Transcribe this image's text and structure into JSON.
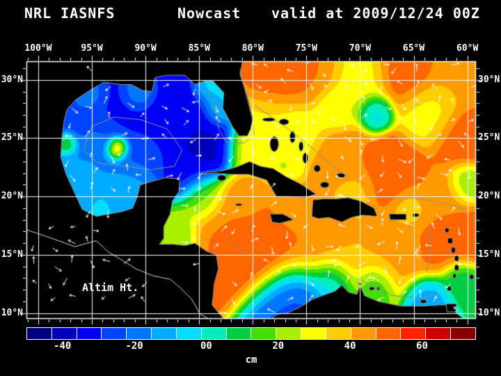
{
  "title": {
    "left": "NRL IASNFS",
    "center": "Nowcast",
    "right": "valid at 2009/12/24 00Z"
  },
  "map": {
    "overlay_label": "Altim Ht.",
    "extent": {
      "lon_min": -101.1,
      "lon_max": -59.2,
      "lat_min": 9.5,
      "lat_max": 31.6
    },
    "lon_ticks": [
      {
        "lon": -100,
        "label": "100°W"
      },
      {
        "lon": -95,
        "label": "95°W"
      },
      {
        "lon": -90,
        "label": "90°W"
      },
      {
        "lon": -85,
        "label": "85°W"
      },
      {
        "lon": -80,
        "label": "80°W"
      },
      {
        "lon": -75,
        "label": "75°W"
      },
      {
        "lon": -70,
        "label": "70°W"
      },
      {
        "lon": -65,
        "label": "65°W"
      },
      {
        "lon": -60,
        "label": "60°W"
      }
    ],
    "lat_ticks": [
      {
        "lat": 30,
        "label": "30°N"
      },
      {
        "lat": 25,
        "label": "25°N"
      },
      {
        "lat": 20,
        "label": "20°N"
      },
      {
        "lat": 15,
        "label": "15°N"
      },
      {
        "lat": 10,
        "label": "10°N"
      }
    ],
    "grid_color": "#ffffff",
    "coast_color": "#9a9a9a",
    "land_color": "#000000",
    "vector_color": "#ffffff"
  },
  "colorbar": {
    "unit": "cm",
    "min": -50,
    "max": 75,
    "colors": [
      "#000080",
      "#0000bb",
      "#0000f5",
      "#0044ff",
      "#0077ff",
      "#00aaff",
      "#00ddff",
      "#00eebb",
      "#00cc44",
      "#44dd00",
      "#aaee00",
      "#ffff00",
      "#ffcc00",
      "#ff9900",
      "#ff6600",
      "#ff2200",
      "#cc0000",
      "#880000"
    ],
    "ticks": [
      {
        "value": -40,
        "label": "-40"
      },
      {
        "value": -20,
        "label": "-20"
      },
      {
        "value": 0,
        "label": "00"
      },
      {
        "value": 20,
        "label": "20"
      },
      {
        "value": 40,
        "label": "40"
      },
      {
        "value": 60,
        "label": "60"
      }
    ]
  },
  "chart_data": {
    "type": "heatmap",
    "title": "NRL IASNFS Nowcast valid at 2009/12/24 00Z",
    "variable": "Altim Ht.",
    "units": "cm",
    "lon_range": [
      -101.1,
      -59.2
    ],
    "lat_range": [
      9.5,
      31.6
    ],
    "value_range": [
      -50,
      75
    ],
    "colorbar_ticks": [
      -40,
      -20,
      0,
      20,
      40,
      60
    ],
    "control_points": [
      [
        -97.0,
        27.5,
        -28,
        2.0
      ],
      [
        -95.5,
        28.7,
        -3,
        0.8
      ],
      [
        -93.5,
        27.2,
        -30,
        1.8
      ],
      [
        -90.5,
        28.9,
        -3,
        0.8
      ],
      [
        -89.5,
        27.5,
        -33,
        1.8
      ],
      [
        -86.0,
        26.5,
        -35,
        1.8
      ],
      [
        -84.0,
        29.3,
        -3,
        0.8
      ],
      [
        -83.2,
        27.5,
        -3,
        0.8
      ],
      [
        -84.6,
        24.2,
        -38,
        1.5
      ],
      [
        -86.2,
        22.0,
        -33,
        1.1
      ],
      [
        -90.5,
        24.0,
        -26,
        1.5
      ],
      [
        -94.6,
        24.6,
        -14,
        1.1
      ],
      [
        -92.6,
        24.2,
        75,
        0.55
      ],
      [
        -97.3,
        24.6,
        25,
        0.55
      ],
      [
        -96.6,
        21.6,
        -12,
        1.2
      ],
      [
        -91.5,
        21.2,
        -12,
        1.2
      ],
      [
        -94.0,
        19.5,
        -8,
        0.9
      ],
      [
        -84.6,
        19.8,
        18,
        1.1
      ],
      [
        -87.2,
        16.6,
        20,
        1.1
      ],
      [
        -80.2,
        24.0,
        32,
        1.1
      ],
      [
        -78.8,
        26.3,
        32,
        1.3
      ],
      [
        -77.6,
        23.1,
        26,
        1.0
      ],
      [
        -82.2,
        17.2,
        48,
        1.8
      ],
      [
        -78.6,
        15.6,
        56,
        1.8
      ],
      [
        -75.0,
        16.2,
        46,
        1.8
      ],
      [
        -71.0,
        15.0,
        40,
        1.8
      ],
      [
        -66.6,
        15.2,
        42,
        1.6
      ],
      [
        -63.2,
        15.6,
        50,
        1.4
      ],
      [
        -80.6,
        19.6,
        44,
        1.3
      ],
      [
        -76.2,
        18.9,
        40,
        1.1
      ],
      [
        -76.2,
        11.6,
        -24,
        1.6
      ],
      [
        -72.6,
        12.6,
        -8,
        1.1
      ],
      [
        -68.8,
        12.4,
        12,
        1.0
      ],
      [
        -63.6,
        11.4,
        -12,
        1.0
      ],
      [
        -60.8,
        12.6,
        8,
        0.9
      ],
      [
        -78.2,
        30.0,
        50,
        1.3
      ],
      [
        -74.6,
        30.6,
        48,
        1.5
      ],
      [
        -70.2,
        30.0,
        30,
        1.5
      ],
      [
        -65.6,
        30.6,
        52,
        1.5
      ],
      [
        -61.0,
        30.2,
        42,
        1.4
      ],
      [
        -72.2,
        27.6,
        25,
        1.1
      ],
      [
        -68.6,
        27.2,
        -5,
        0.8
      ],
      [
        -63.6,
        27.2,
        30,
        1.4
      ],
      [
        -60.4,
        25.0,
        52,
        1.4
      ],
      [
        -75.6,
        25.6,
        30,
        1.2
      ],
      [
        -71.6,
        23.6,
        46,
        1.4
      ],
      [
        -67.0,
        22.2,
        52,
        1.5
      ],
      [
        -62.6,
        20.2,
        46,
        1.4
      ],
      [
        -60.2,
        16.6,
        50,
        1.2
      ],
      [
        -65.2,
        19.0,
        36,
        0.9
      ],
      [
        -70.6,
        20.6,
        38,
        1.0
      ],
      [
        -60.2,
        21.2,
        18,
        0.9
      ]
    ]
  },
  "geo": {
    "land": [
      [
        [
          -101.3,
          31.8
        ],
        [
          -80.9,
          31.8
        ],
        [
          -81.2,
          30.5
        ],
        [
          -80.5,
          28.6
        ],
        [
          -80.0,
          26.7
        ],
        [
          -80.2,
          25.8
        ],
        [
          -80.5,
          25.2
        ],
        [
          -81.3,
          25.2
        ],
        [
          -81.9,
          26.0
        ],
        [
          -82.8,
          27.6
        ],
        [
          -82.7,
          28.9
        ],
        [
          -83.7,
          29.9
        ],
        [
          -84.5,
          29.9
        ],
        [
          -85.4,
          29.6
        ],
        [
          -86.3,
          30.4
        ],
        [
          -88.0,
          30.4
        ],
        [
          -89.1,
          30.2
        ],
        [
          -89.4,
          29.0
        ],
        [
          -90.3,
          29.1
        ],
        [
          -91.3,
          29.6
        ],
        [
          -92.3,
          29.6
        ],
        [
          -93.9,
          29.8
        ],
        [
          -95.2,
          29.1
        ],
        [
          -96.5,
          28.3
        ],
        [
          -97.3,
          27.5
        ],
        [
          -97.6,
          26.4
        ],
        [
          -97.8,
          24.9
        ],
        [
          -97.9,
          23.4
        ],
        [
          -97.4,
          21.9
        ],
        [
          -96.5,
          20.1
        ],
        [
          -95.9,
          18.9
        ],
        [
          -94.6,
          18.3
        ],
        [
          -93.4,
          18.5
        ],
        [
          -92.2,
          18.7
        ],
        [
          -91.2,
          19.0
        ],
        [
          -90.8,
          19.9
        ],
        [
          -90.5,
          21.0
        ],
        [
          -89.4,
          21.3
        ],
        [
          -88.2,
          21.6
        ],
        [
          -86.8,
          21.5
        ],
        [
          -86.9,
          20.4
        ],
        [
          -87.5,
          19.6
        ],
        [
          -87.7,
          18.5
        ],
        [
          -88.3,
          17.4
        ],
        [
          -88.3,
          16.4
        ],
        [
          -88.7,
          15.9
        ],
        [
          -87.4,
          15.9
        ],
        [
          -86.3,
          15.8
        ],
        [
          -85.4,
          16.0
        ],
        [
          -84.3,
          15.3
        ],
        [
          -83.4,
          15.0
        ],
        [
          -83.2,
          13.8
        ],
        [
          -83.6,
          12.5
        ],
        [
          -83.7,
          11.4
        ],
        [
          -83.8,
          10.7
        ],
        [
          -82.8,
          9.6
        ],
        [
          -82.3,
          9.3
        ],
        [
          -101.3,
          9.3
        ]
      ],
      [
        [
          -84.9,
          21.9
        ],
        [
          -84.1,
          22.1
        ],
        [
          -82.9,
          22.2
        ],
        [
          -81.6,
          22.5
        ],
        [
          -80.3,
          23.0
        ],
        [
          -79.3,
          22.6
        ],
        [
          -78.1,
          22.4
        ],
        [
          -76.9,
          21.7
        ],
        [
          -75.6,
          21.1
        ],
        [
          -74.1,
          20.2
        ],
        [
          -75.2,
          19.9
        ],
        [
          -76.6,
          20.0
        ],
        [
          -77.8,
          20.0
        ],
        [
          -78.7,
          21.4
        ],
        [
          -80.4,
          21.9
        ],
        [
          -82.0,
          21.9
        ],
        [
          -83.6,
          22.0
        ]
      ],
      [
        [
          -74.5,
          18.3
        ],
        [
          -74.4,
          19.7
        ],
        [
          -73.4,
          19.8
        ],
        [
          -72.3,
          19.8
        ],
        [
          -71.1,
          19.9
        ],
        [
          -69.9,
          19.6
        ],
        [
          -68.7,
          19.0
        ],
        [
          -68.4,
          18.3
        ],
        [
          -69.8,
          18.4
        ],
        [
          -70.8,
          18.2
        ],
        [
          -71.7,
          17.8
        ],
        [
          -72.9,
          18.2
        ],
        [
          -73.9,
          18.1
        ]
      ],
      [
        [
          -78.4,
          18.5
        ],
        [
          -77.2,
          18.5
        ],
        [
          -76.2,
          18.0
        ],
        [
          -77.5,
          17.7
        ],
        [
          -78.2,
          17.8
        ]
      ],
      [
        [
          -67.3,
          18.5
        ],
        [
          -65.7,
          18.5
        ],
        [
          -65.7,
          18.0
        ],
        [
          -67.2,
          18.0
        ]
      ],
      [
        [
          -78.6,
          9.3
        ],
        [
          -77.7,
          9.9
        ],
        [
          -76.8,
          10.0
        ],
        [
          -75.6,
          10.5
        ],
        [
          -74.6,
          11.1
        ],
        [
          -74.1,
          11.3
        ],
        [
          -72.3,
          11.9
        ],
        [
          -71.7,
          12.4
        ],
        [
          -71.1,
          11.8
        ],
        [
          -70.3,
          11.6
        ],
        [
          -70.0,
          12.4
        ],
        [
          -69.6,
          11.5
        ],
        [
          -68.3,
          11.0
        ],
        [
          -66.2,
          10.6
        ],
        [
          -64.1,
          10.6
        ],
        [
          -62.6,
          10.7
        ],
        [
          -62.0,
          10.7
        ],
        [
          -61.0,
          10.0
        ],
        [
          -60.1,
          9.3
        ]
      ],
      [
        [
          -62.0,
          10.8
        ],
        [
          -61.0,
          10.8
        ],
        [
          -61.1,
          10.1
        ],
        [
          -61.9,
          10.1
        ]
      ]
    ],
    "islands": [
      [
        -78.5,
        26.6,
        1.2,
        0.3
      ],
      [
        -77.1,
        26.4,
        0.9,
        0.5
      ],
      [
        -78.0,
        24.5,
        0.8,
        1.3
      ],
      [
        -76.3,
        25.1,
        0.5,
        1.0
      ],
      [
        -75.5,
        24.3,
        0.4,
        0.8
      ],
      [
        -75.1,
        23.3,
        0.5,
        0.9
      ],
      [
        -74.0,
        22.4,
        0.6,
        0.6
      ],
      [
        -73.3,
        21.0,
        0.8,
        0.5
      ],
      [
        -71.8,
        21.8,
        0.8,
        0.4
      ],
      [
        -81.3,
        19.3,
        0.6,
        0.2
      ],
      [
        -82.9,
        21.6,
        0.8,
        0.5
      ],
      [
        -64.8,
        18.4,
        0.6,
        0.3
      ],
      [
        -61.9,
        17.1,
        0.4,
        0.4
      ],
      [
        -61.6,
        16.2,
        0.5,
        0.5
      ],
      [
        -61.3,
        15.4,
        0.4,
        0.5
      ],
      [
        -61.0,
        14.7,
        0.4,
        0.5
      ],
      [
        -61.0,
        13.9,
        0.4,
        0.5
      ],
      [
        -61.2,
        13.2,
        0.3,
        0.4
      ],
      [
        -61.7,
        12.1,
        0.4,
        0.4
      ],
      [
        -59.6,
        13.1,
        0.4,
        0.4
      ],
      [
        -68.9,
        12.1,
        0.5,
        0.3
      ],
      [
        -70.0,
        12.5,
        0.3,
        0.2
      ],
      [
        -68.3,
        12.1,
        0.3,
        0.3
      ],
      [
        -64.1,
        11.0,
        0.6,
        0.3
      ]
    ],
    "contours": [
      [
        [
          -95.8,
          24.0
        ],
        [
          -95.0,
          26.0
        ],
        [
          -93.0,
          26.8
        ],
        [
          -90.5,
          26.6
        ],
        [
          -88.0,
          25.8
        ],
        [
          -86.6,
          24.0
        ],
        [
          -87.3,
          22.6
        ],
        [
          -89.5,
          22.3
        ],
        [
          -92.0,
          22.6
        ],
        [
          -94.5,
          22.9
        ],
        [
          -95.8,
          24.0
        ]
      ],
      [
        [
          -79.8,
          27.8
        ],
        [
          -77.0,
          26.0
        ],
        [
          -74.5,
          24.2
        ],
        [
          -72.5,
          22.6
        ],
        [
          -71.0,
          21.6
        ]
      ],
      [
        [
          -81.2,
          30.9
        ],
        [
          -80.7,
          29.0
        ],
        [
          -80.0,
          26.5
        ],
        [
          -79.9,
          25.3
        ],
        [
          -80.8,
          24.6
        ],
        [
          -82.4,
          24.6
        ],
        [
          -83.2,
          25.8
        ],
        [
          -83.5,
          27.8
        ],
        [
          -84.2,
          29.2
        ]
      ],
      [
        [
          -68.5,
          19.9
        ],
        [
          -65.0,
          19.9
        ],
        [
          -62.0,
          19.4
        ],
        [
          -60.0,
          18.8
        ]
      ],
      [
        [
          -63.6,
          17.5
        ],
        [
          -63.4,
          15.5
        ],
        [
          -63.8,
          13.5
        ]
      ],
      [
        [
          -70.0,
          12.9
        ],
        [
          -67.0,
          11.5
        ],
        [
          -64.5,
          11.3
        ],
        [
          -62.5,
          11.6
        ]
      ],
      [
        [
          -82.5,
          16.5
        ],
        [
          -80.5,
          15.0
        ],
        [
          -79.0,
          13.5
        ]
      ]
    ],
    "pacific_coast": [
      [
        -101.3,
        17.2
      ],
      [
        -99.0,
        16.5
      ],
      [
        -96.6,
        15.7
      ],
      [
        -94.6,
        16.2
      ],
      [
        -93.4,
        15.2
      ],
      [
        -92.3,
        14.6
      ],
      [
        -90.9,
        13.8
      ],
      [
        -89.3,
        13.2
      ],
      [
        -87.7,
        12.9
      ],
      [
        -86.8,
        12.2
      ],
      [
        -85.7,
        11.2
      ],
      [
        -84.9,
        9.9
      ],
      [
        -83.9,
        9.4
      ]
    ]
  }
}
